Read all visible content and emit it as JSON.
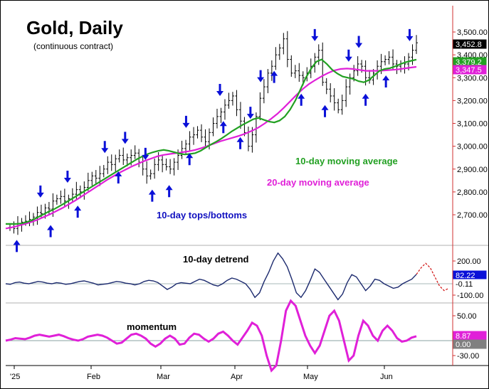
{
  "chart_data": {
    "type": "candlestick-with-indicators",
    "title": "Gold, Daily",
    "subtitle": "(continuous contract)",
    "x_tick_labels": [
      "'25",
      "Feb",
      "Mar",
      "Apr",
      "May",
      "Jun"
    ],
    "colors": {
      "ma10": "#22a022",
      "ma20": "#e020d8",
      "arrows": "#0a10d8",
      "detrend_line": "#1c2a6e",
      "detrend_projection": "#d01010",
      "momentum": "#e020d8",
      "label_blue": "#1010c0"
    },
    "price_panel": {
      "ylim": [
        2600,
        3600
      ],
      "y_ticks": [
        2700,
        2800,
        2900,
        3000,
        3100,
        3200,
        3300,
        3400,
        3500
      ],
      "y_tick_labels": [
        "2,700.00",
        "2,800.00",
        "2,900.00",
        "3,000.00",
        "3,100.00",
        "3,200.00",
        "3,300.00",
        "3,400.00",
        "3,500.00"
      ],
      "current_labels": [
        {
          "text": "3,452.8",
          "value": 3452.8,
          "bg": "#000000",
          "fg": "#ffffff"
        },
        {
          "text": "3,379.2",
          "value": 3379.2,
          "bg": "#22a022",
          "fg": "#ffffff"
        },
        {
          "text": "3,347.5",
          "value": 3347.5,
          "bg": "#e020d8",
          "fg": "#ffffff"
        }
      ],
      "closes": [
        2645,
        2640,
        2660,
        2668,
        2672,
        2680,
        2690,
        2710,
        2705,
        2730,
        2725,
        2760,
        2770,
        2780,
        2760,
        2770,
        2790,
        2810,
        2800,
        2820,
        2850,
        2870,
        2860,
        2880,
        2900,
        2930,
        2920,
        2945,
        2960,
        2940,
        2950,
        2960,
        2970,
        2930,
        2900,
        2870,
        2880,
        2920,
        2940,
        2920,
        2910,
        2900,
        2930,
        2960,
        2990,
        3010,
        3040,
        3050,
        3070,
        3040,
        3020,
        3060,
        3100,
        3130,
        3150,
        3180,
        3200,
        3220,
        3160,
        3110,
        3060,
        3000,
        3050,
        3130,
        3210,
        3260,
        3320,
        3350,
        3400,
        3430,
        3470,
        3380,
        3320,
        3330,
        3310,
        3300,
        3320,
        3350,
        3390,
        3420,
        3280,
        3250,
        3220,
        3190,
        3160,
        3200,
        3260,
        3300,
        3330,
        3360,
        3350,
        3300,
        3290,
        3320,
        3350,
        3370,
        3380,
        3390,
        3360,
        3350,
        3340,
        3360,
        3390,
        3420,
        3452.8
      ],
      "ma10": [
        2660,
        2660,
        2660,
        2662,
        2668,
        2676,
        2688,
        2700,
        2712,
        2722,
        2735,
        2748,
        2762,
        2776,
        2790,
        2804,
        2818,
        2832,
        2846,
        2860,
        2874,
        2888,
        2902,
        2916,
        2930,
        2944,
        2956,
        2966,
        2974,
        2980,
        2984,
        2980,
        2974,
        2968,
        2964,
        2966,
        2970,
        2980,
        2994,
        3008,
        3020,
        3034,
        3050,
        3066,
        3080,
        3094,
        3106,
        3118,
        3124,
        3116,
        3108,
        3104,
        3112,
        3130,
        3160,
        3200,
        3250,
        3300,
        3340,
        3370,
        3380,
        3360,
        3335,
        3318,
        3305,
        3300,
        3295,
        3285,
        3280,
        3290,
        3310,
        3330,
        3338,
        3342,
        3350,
        3360,
        3368,
        3374,
        3379.2
      ],
      "ma10_x_start": 0,
      "ma20": [
        2640,
        2645,
        2652,
        2660,
        2668,
        2678,
        2690,
        2702,
        2716,
        2730,
        2746,
        2762,
        2780,
        2798,
        2816,
        2834,
        2852,
        2868,
        2884,
        2898,
        2912,
        2924,
        2936,
        2946,
        2956,
        2962,
        2966,
        2970,
        2974,
        2978,
        2984,
        2992,
        3002,
        3012,
        3022,
        3030,
        3038,
        3046,
        3056,
        3068,
        3082,
        3100,
        3120,
        3142,
        3168,
        3196,
        3224,
        3250,
        3272,
        3290,
        3306,
        3320,
        3332,
        3338,
        3340,
        3338,
        3334,
        3330,
        3330,
        3330,
        3332,
        3334,
        3336,
        3340,
        3344,
        3347.5
      ],
      "ma20_x_start": 13
    },
    "detrend_panel": {
      "title": "10-day detrend",
      "y_ticks": [
        200,
        -100
      ],
      "y_tick_labels": [
        "200.00",
        "-100.00"
      ],
      "current_labels": [
        {
          "text": "82.22",
          "value": 82.22,
          "bg": "#0a10d8",
          "fg": "#ffffff"
        },
        {
          "text": "-0.11",
          "value": -0.11,
          "bg": "#ffffff",
          "fg": "#000000"
        }
      ],
      "values": [
        0,
        -5,
        10,
        15,
        5,
        0,
        10,
        20,
        15,
        5,
        0,
        10,
        5,
        -5,
        0,
        10,
        20,
        25,
        15,
        5,
        -10,
        -5,
        0,
        10,
        20,
        15,
        5,
        0,
        -10,
        0,
        20,
        30,
        25,
        10,
        -20,
        -50,
        -30,
        0,
        10,
        5,
        0,
        20,
        40,
        30,
        10,
        -10,
        -20,
        0,
        30,
        50,
        40,
        20,
        0,
        -50,
        -120,
        -80,
        20,
        100,
        200,
        270,
        220,
        150,
        40,
        -80,
        -120,
        -60,
        30,
        130,
        100,
        40,
        -20,
        -80,
        -140,
        -90,
        10,
        80,
        60,
        0,
        -60,
        -20,
        40,
        30,
        0,
        -20,
        -40,
        -30,
        0,
        20,
        40,
        82.22
      ],
      "projection": [
        82.22,
        140,
        180,
        140,
        60,
        -20,
        -60,
        -40
      ]
    },
    "momentum_panel": {
      "title": "momentum",
      "y_ticks": [
        50,
        -30
      ],
      "y_tick_labels": [
        "50.00",
        "-30.00"
      ],
      "current_labels": [
        {
          "text": "8.87",
          "value": 8.87,
          "bg": "#e020d8",
          "fg": "#ffffff"
        },
        {
          "text": "0.00",
          "value": 0,
          "bg": "#808080",
          "fg": "#ffffff"
        }
      ],
      "values": [
        0,
        2,
        5,
        4,
        3,
        6,
        10,
        12,
        10,
        8,
        10,
        12,
        9,
        5,
        2,
        0,
        3,
        8,
        10,
        12,
        10,
        6,
        0,
        -6,
        -4,
        4,
        12,
        14,
        10,
        4,
        -6,
        -12,
        -6,
        4,
        10,
        4,
        -8,
        -6,
        6,
        14,
        12,
        4,
        -2,
        4,
        14,
        18,
        10,
        0,
        -8,
        6,
        20,
        36,
        30,
        10,
        -30,
        -60,
        -50,
        0,
        60,
        80,
        70,
        40,
        10,
        -10,
        -25,
        -10,
        20,
        50,
        60,
        40,
        0,
        -40,
        -30,
        10,
        40,
        30,
        10,
        0,
        20,
        30,
        20,
        5,
        -2,
        0,
        6,
        8.87
      ]
    },
    "annotations": [
      {
        "text": "10-day moving average",
        "color": "#22a022"
      },
      {
        "text": "20-day moving average",
        "color": "#e020d8"
      },
      {
        "text": "10-day tops/bottoms",
        "color": "#1010c0"
      }
    ],
    "tops": [
      4.5,
      8.5,
      14.0,
      17.0,
      20.0,
      26.0,
      31.0,
      35.5,
      37.0,
      45.0,
      50.0,
      51.5,
      59.0
    ],
    "bottoms": [
      1.0,
      6.0,
      10.0,
      16.0,
      21.0,
      23.5,
      26.5,
      31.5,
      34.0,
      39.0,
      43.0,
      46.5,
      52.5,
      55.5
    ]
  }
}
